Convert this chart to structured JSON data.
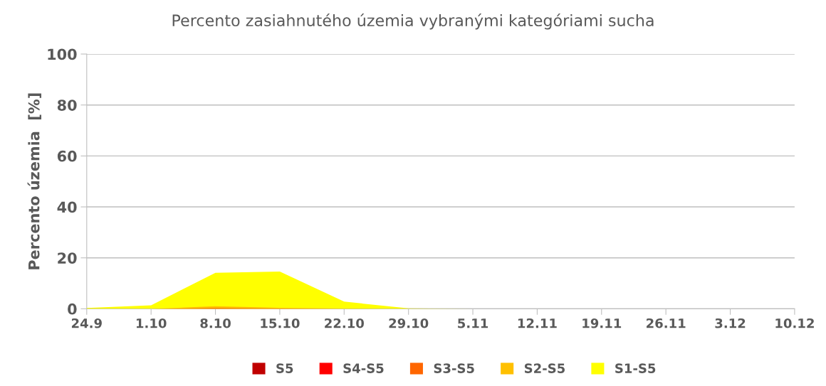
{
  "chart_data": {
    "type": "area",
    "title": "Percento zasiahnutého územia vybranými kategóriami sucha",
    "ylabel": "Percento územia  [%]",
    "categories": [
      "24.9",
      "1.10",
      "8.10",
      "15.10",
      "22.10",
      "29.10",
      "5.11",
      "12.11",
      "19.11",
      "26.11",
      "3.12",
      "10.12"
    ],
    "series": [
      {
        "name": "S5",
        "color": "#c00000",
        "values": [
          null,
          null,
          null,
          null,
          null,
          null,
          null,
          null,
          null,
          null,
          null,
          null
        ]
      },
      {
        "name": "S4-S5",
        "color": "#ff0000",
        "values": [
          null,
          null,
          null,
          null,
          null,
          null,
          null,
          null,
          null,
          null,
          null,
          null
        ]
      },
      {
        "name": "S3-S5",
        "color": "#ff6600",
        "values": [
          0,
          0,
          0.3,
          0.1,
          0,
          0,
          0,
          0,
          0,
          0,
          0,
          0
        ]
      },
      {
        "name": "S2-S5",
        "color": "#ffc000",
        "values": [
          0,
          0,
          1.0,
          0.4,
          0.1,
          0,
          0,
          0,
          0,
          0,
          0,
          0
        ]
      },
      {
        "name": "S1-S5",
        "color": "#ffff00",
        "values": [
          0.3,
          1.4,
          14.1,
          14.6,
          2.8,
          0.2,
          0,
          0,
          0,
          0,
          0,
          0
        ]
      }
    ],
    "ylim": [
      0,
      100
    ],
    "yticks": [
      0,
      20,
      40,
      60,
      80,
      100
    ],
    "grid": "y",
    "legend": "bottom"
  }
}
